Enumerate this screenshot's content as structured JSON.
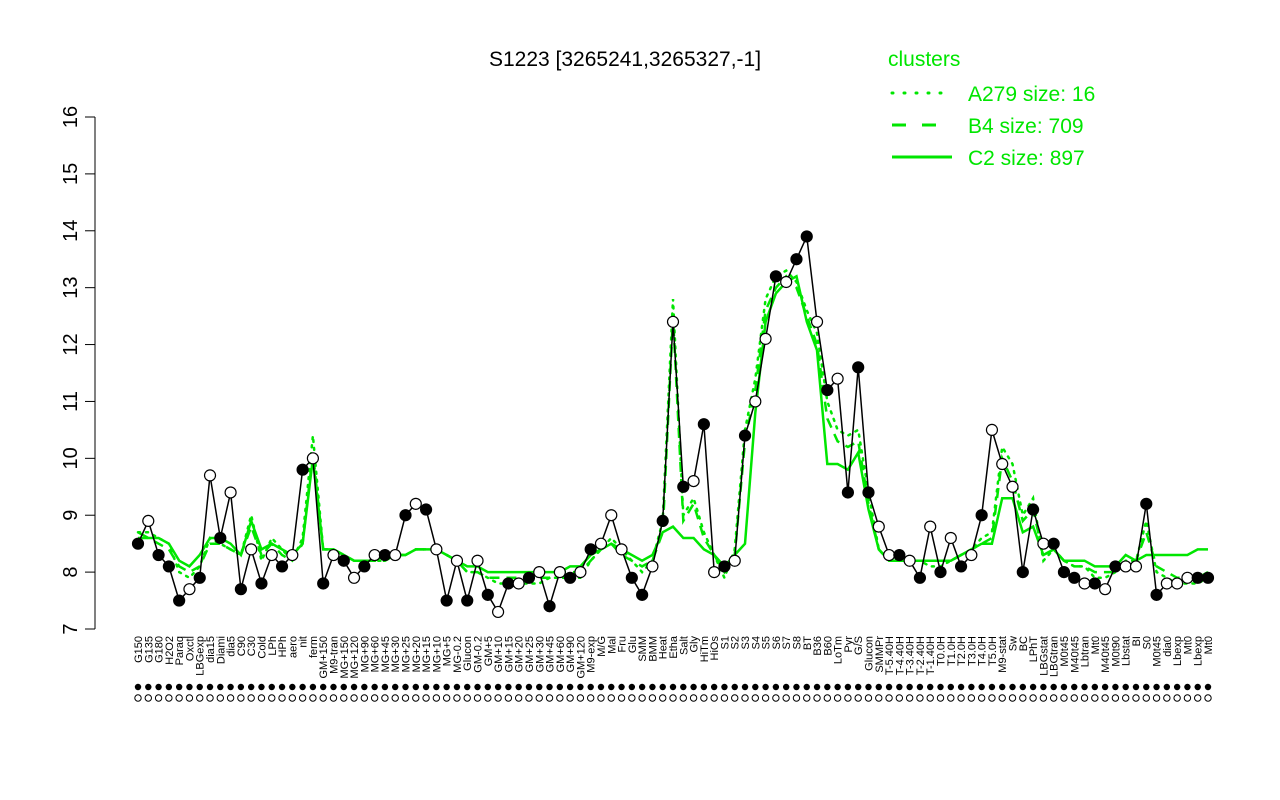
{
  "chart_data": {
    "type": "line",
    "title": "S1223 [3265241,3265327,-1]",
    "xlabel": "",
    "ylabel": "",
    "ylim": [
      7,
      16
    ],
    "y_ticks": [
      7,
      8,
      9,
      10,
      11,
      12,
      13,
      14,
      15,
      16
    ],
    "x_tick_labels": [
      "G150",
      "G135",
      "G180",
      "H2O2",
      "Paraq",
      "Oxctl",
      "LBGexp",
      "dia15",
      "Diami",
      "dia5",
      "C90",
      "C30",
      "Cold",
      "LPh",
      "HPh",
      "aero",
      "nit",
      "ferm",
      "GM+150",
      "M9-tran",
      "MG+150",
      "MG+120",
      "MG+90",
      "MG+60",
      "MG+45",
      "MG+30",
      "MG+25",
      "MG+20",
      "MG+15",
      "MG+10",
      "MG+5",
      "MG-0.2",
      "Glucon",
      "GM-0.2",
      "GM+5",
      "GM+10",
      "GM+15",
      "GM+20",
      "GM+25",
      "GM+30",
      "GM+45",
      "GM+60",
      "GM+90",
      "GM+120",
      "M9-exp",
      "M/G",
      "Mal",
      "Fru",
      "Glu",
      "SMM",
      "BMM",
      "Heat",
      "Etha",
      "Salt",
      "Gly",
      "HiTm",
      "HiOs",
      "S1",
      "S2",
      "S3",
      "S4",
      "S5",
      "S6",
      "S7",
      "S8",
      "BT",
      "B36",
      "B60",
      "LoTm",
      "Pyr",
      "G/S",
      "Glucon",
      "SMMPr",
      "T-5.40H",
      "T-4.40H",
      "T-3.40H",
      "T-2.40H",
      "T-1.40H",
      "T0.0H",
      "T1.0H",
      "T2.0H",
      "T3.0H",
      "T4.0H",
      "T5.0H",
      "M9-stat",
      "Sw",
      "BC",
      "LPhT",
      "LBGstat",
      "LBGtran",
      "M0t45",
      "M40t45",
      "Lbtran",
      "Mt0",
      "M40t45",
      "M0t90",
      "Lbstat",
      "BI",
      "S0",
      "M0t45",
      "dia0",
      "Lbexp",
      "Mt0",
      "Lbexp",
      "Mt0"
    ],
    "series": [
      {
        "name": "A279 size: 16",
        "style": "dotted",
        "color": "#00e600",
        "values": [
          8.7,
          8.7,
          8.6,
          8.5,
          8.0,
          7.9,
          8.1,
          8.6,
          8.5,
          8.4,
          8.3,
          9.0,
          8.2,
          8.6,
          8.4,
          8.2,
          8.6,
          10.4,
          8.4,
          8.4,
          8.3,
          8.2,
          8.2,
          8.2,
          8.2,
          8.3,
          8.3,
          8.4,
          8.4,
          8.4,
          8.3,
          8.2,
          8.0,
          8.0,
          7.9,
          7.8,
          7.8,
          7.8,
          7.8,
          7.8,
          7.9,
          7.9,
          7.9,
          7.9,
          8.2,
          8.4,
          8.6,
          8.4,
          8.2,
          8.0,
          8.2,
          8.9,
          12.8,
          9.0,
          9.3,
          8.7,
          8.3,
          7.9,
          8.4,
          10.5,
          11.4,
          12.8,
          13.2,
          13.3,
          13.1,
          12.6,
          12.2,
          11.0,
          10.5,
          10.4,
          10.5,
          9.4,
          8.4,
          8.2,
          8.2,
          8.2,
          8.2,
          8.1,
          8.1,
          8.2,
          8.3,
          8.4,
          8.6,
          8.7,
          10.2,
          9.9,
          9.0,
          9.3,
          8.2,
          8.4,
          8.2,
          8.1,
          8.1,
          7.9,
          7.9,
          8.0,
          8.2,
          8.2,
          8.9,
          8.0,
          7.9,
          7.8,
          7.8,
          7.8,
          7.9
        ]
      },
      {
        "name": "B4 size: 709",
        "style": "dashed",
        "color": "#00e600",
        "values": [
          8.6,
          8.6,
          8.5,
          8.4,
          8.1,
          8.0,
          8.1,
          8.5,
          8.5,
          8.4,
          8.3,
          8.8,
          8.3,
          8.5,
          8.3,
          8.2,
          8.5,
          10.1,
          8.4,
          8.4,
          8.3,
          8.2,
          8.2,
          8.2,
          8.2,
          8.3,
          8.3,
          8.4,
          8.4,
          8.4,
          8.3,
          8.2,
          8.0,
          8.0,
          7.9,
          7.9,
          7.9,
          7.9,
          7.9,
          7.9,
          7.9,
          8.0,
          8.0,
          8.0,
          8.2,
          8.4,
          8.5,
          8.3,
          8.2,
          8.1,
          8.2,
          8.7,
          12.5,
          8.9,
          9.2,
          8.6,
          8.3,
          8.0,
          8.3,
          10.3,
          11.2,
          12.6,
          13.0,
          13.2,
          13.0,
          12.5,
          12.0,
          10.7,
          10.3,
          10.2,
          10.3,
          9.2,
          8.4,
          8.2,
          8.2,
          8.2,
          8.2,
          8.2,
          8.2,
          8.2,
          8.3,
          8.4,
          8.5,
          8.6,
          10.0,
          9.6,
          8.9,
          9.1,
          8.3,
          8.4,
          8.2,
          8.1,
          8.1,
          8.0,
          8.0,
          8.0,
          8.2,
          8.2,
          8.7,
          8.1,
          8.0,
          7.9,
          7.9,
          7.9,
          8.0
        ]
      },
      {
        "name": "C2 size: 897",
        "style": "solid",
        "color": "#00e600",
        "values": [
          8.7,
          8.6,
          8.6,
          8.5,
          8.2,
          8.1,
          8.3,
          8.6,
          8.6,
          8.5,
          8.3,
          8.9,
          8.4,
          8.5,
          8.4,
          8.3,
          8.5,
          10.0,
          8.4,
          8.4,
          8.3,
          8.2,
          8.2,
          8.2,
          8.3,
          8.3,
          8.3,
          8.4,
          8.4,
          8.4,
          8.3,
          8.2,
          8.1,
          8.1,
          8.0,
          8.0,
          8.0,
          8.0,
          8.0,
          8.0,
          8.0,
          8.0,
          8.1,
          8.1,
          8.3,
          8.4,
          8.5,
          8.4,
          8.3,
          8.2,
          8.3,
          8.7,
          8.8,
          8.6,
          8.6,
          8.4,
          8.3,
          8.1,
          8.3,
          8.5,
          10.8,
          12.4,
          12.9,
          13.1,
          13.2,
          12.4,
          11.9,
          9.9,
          9.9,
          9.8,
          10.1,
          9.1,
          8.4,
          8.2,
          8.2,
          8.2,
          8.2,
          8.2,
          8.2,
          8.2,
          8.3,
          8.4,
          8.5,
          8.5,
          9.3,
          9.3,
          8.7,
          8.8,
          8.3,
          8.4,
          8.2,
          8.2,
          8.2,
          8.1,
          8.1,
          8.1,
          8.3,
          8.2,
          8.3,
          8.3,
          8.3,
          8.3,
          8.3,
          8.4,
          8.4
        ]
      },
      {
        "name": "S1223",
        "style": "points-line",
        "color": "#000000",
        "values": [
          8.5,
          8.9,
          8.3,
          8.1,
          7.5,
          7.7,
          7.9,
          9.7,
          8.6,
          9.4,
          7.7,
          8.4,
          7.8,
          8.3,
          8.1,
          8.3,
          9.8,
          10.0,
          7.8,
          8.3,
          8.2,
          7.9,
          8.1,
          8.3,
          8.3,
          8.3,
          9.0,
          9.2,
          9.1,
          8.4,
          7.5,
          8.2,
          7.5,
          8.2,
          7.6,
          7.3,
          7.8,
          7.8,
          7.9,
          8.0,
          7.4,
          8.0,
          7.9,
          8.0,
          8.4,
          8.5,
          9.0,
          8.4,
          7.9,
          7.6,
          8.1,
          8.9,
          12.4,
          9.5,
          9.6,
          10.6,
          8.0,
          8.1,
          8.2,
          10.4,
          11.0,
          12.1,
          13.2,
          13.1,
          13.5,
          13.9,
          12.4,
          11.2,
          11.4,
          9.4,
          11.6,
          9.4,
          8.8,
          8.3,
          8.3,
          8.2,
          7.9,
          8.8,
          8.0,
          8.6,
          8.1,
          8.3,
          9.0,
          10.5,
          9.9,
          9.5,
          8.0,
          9.1,
          8.5,
          8.5,
          8.0,
          7.9,
          7.8,
          7.8,
          7.7,
          8.1,
          8.1,
          8.1,
          9.2,
          7.6,
          7.8,
          7.8,
          7.9,
          7.9,
          7.9
        ],
        "filled": [
          true,
          false,
          true,
          true,
          true,
          false,
          true,
          false,
          true,
          false,
          true,
          false,
          true,
          false,
          true,
          false,
          true,
          false,
          true,
          false,
          true,
          false,
          true,
          false,
          true,
          false,
          true,
          false,
          true,
          false,
          true,
          false,
          true,
          false,
          true,
          false,
          true,
          false,
          true,
          false,
          true,
          false,
          true,
          false,
          true,
          false,
          false,
          false,
          true,
          true,
          false,
          true,
          false,
          true,
          false,
          true,
          false,
          true,
          false,
          true,
          false,
          false,
          true,
          false,
          true,
          true,
          false,
          true,
          false,
          true,
          true,
          true,
          false,
          false,
          true,
          false,
          true,
          false,
          true,
          false,
          true,
          false,
          true,
          false,
          false,
          false,
          true,
          true,
          false,
          true,
          true,
          true,
          false,
          true,
          false,
          true,
          false,
          false,
          true,
          true,
          false,
          false,
          false,
          true,
          true
        ]
      }
    ],
    "legend": {
      "title": "clusters",
      "position": "top-right",
      "entries": [
        "A279 size: 16",
        "B4 size: 709",
        "C2 size: 897"
      ]
    },
    "grid": false
  }
}
